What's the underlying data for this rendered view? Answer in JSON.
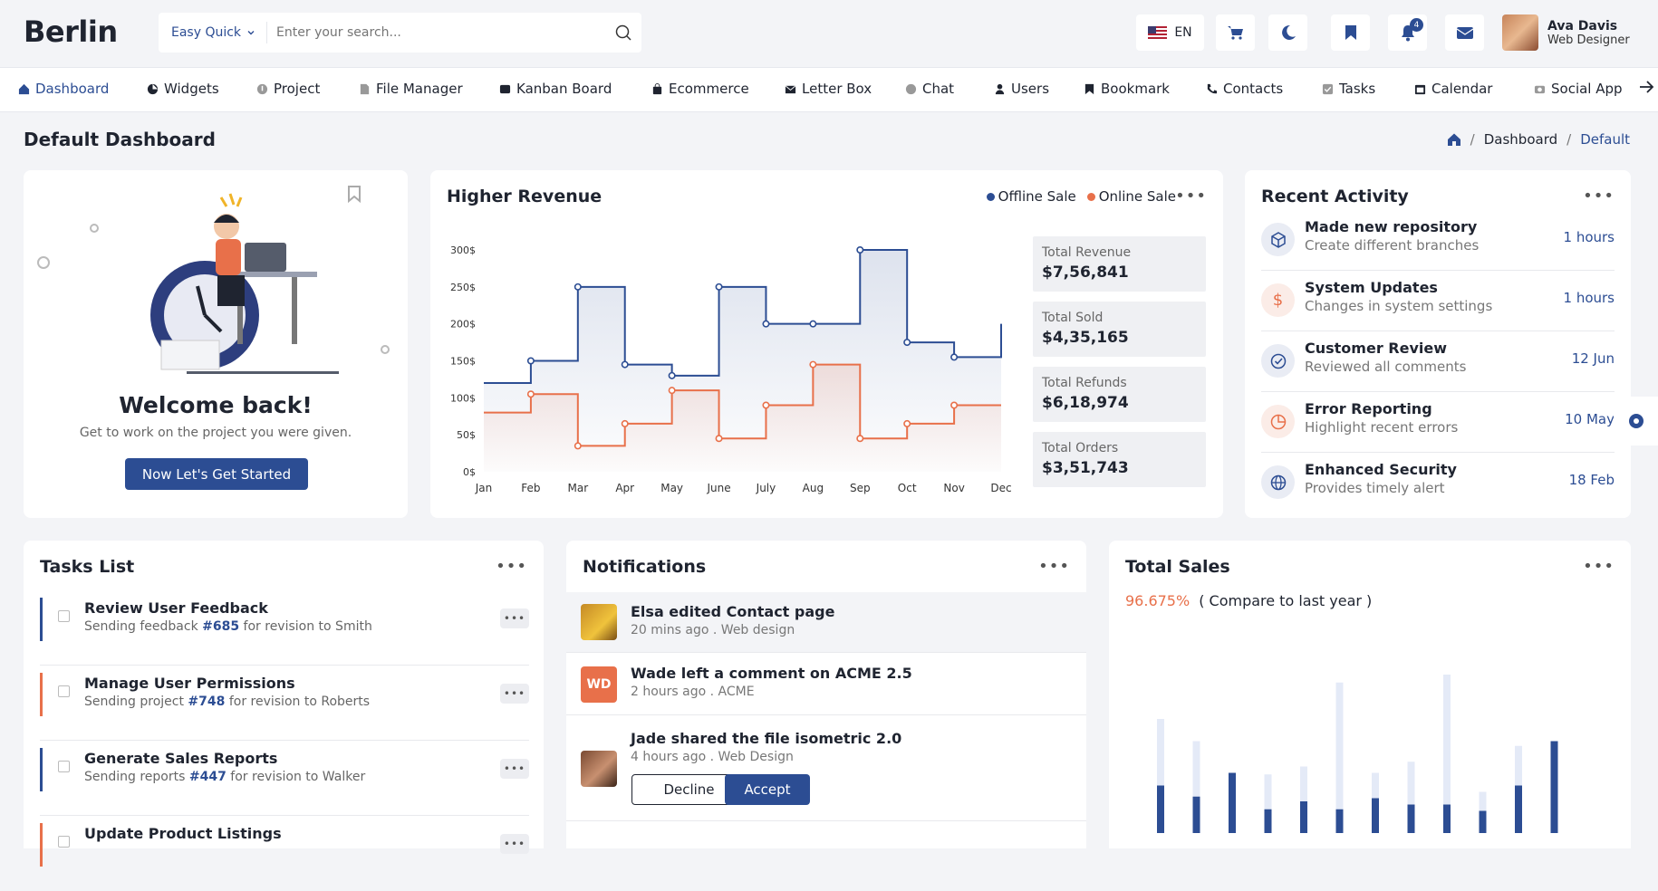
{
  "header": {
    "logo": "Berlin",
    "search_mode": "Easy Quick",
    "search_placeholder": "Enter your search...",
    "language": "EN",
    "notification_count": "4",
    "user_name": "Ava Davis",
    "user_role": "Web Designer"
  },
  "nav": {
    "items": [
      {
        "label": "Dashboard"
      },
      {
        "label": "Widgets"
      },
      {
        "label": "Project"
      },
      {
        "label": "File Manager"
      },
      {
        "label": "Kanban Board"
      },
      {
        "label": "Ecommerce"
      },
      {
        "label": "Letter Box"
      },
      {
        "label": "Chat"
      },
      {
        "label": "Users"
      },
      {
        "label": "Bookmark"
      },
      {
        "label": "Contacts"
      },
      {
        "label": "Tasks"
      },
      {
        "label": "Calendar"
      },
      {
        "label": "Social App"
      }
    ]
  },
  "page": {
    "title": "Default Dashboard",
    "breadcrumb": [
      "Dashboard",
      "Default"
    ]
  },
  "welcome": {
    "title": "Welcome back!",
    "subtitle": "Get to work on the project you were given.",
    "button": "Now Let's Get Started"
  },
  "revenue": {
    "title": "Higher Revenue",
    "legend": [
      "Offline Sale",
      "Online Sale"
    ],
    "stats": [
      {
        "label": "Total Revenue",
        "value": "$7,56,841"
      },
      {
        "label": "Total Sold",
        "value": "$4,35,165"
      },
      {
        "label": "Total Refunds",
        "value": "$6,18,974"
      },
      {
        "label": "Total Orders",
        "value": "$3,51,743"
      }
    ]
  },
  "chart_data": {
    "type": "line",
    "categories": [
      "Jan",
      "Feb",
      "Mar",
      "Apr",
      "May",
      "June",
      "July",
      "Aug",
      "Sep",
      "Oct",
      "Nov",
      "Dec"
    ],
    "y_ticks": [
      "0$",
      "50$",
      "100$",
      "150$",
      "200$",
      "250$",
      "300$"
    ],
    "ylim": [
      0,
      300
    ],
    "series": [
      {
        "name": "Offline Sale",
        "color": "#2c4d93",
        "values": [
          120,
          150,
          250,
          145,
          130,
          250,
          200,
          200,
          300,
          175,
          155,
          200
        ]
      },
      {
        "name": "Online Sale",
        "color": "#e8704a",
        "values": [
          80,
          105,
          35,
          65,
          110,
          45,
          90,
          145,
          45,
          65,
          90,
          90
        ]
      }
    ]
  },
  "activity": {
    "title": "Recent Activity",
    "items": [
      {
        "title": "Made new repository",
        "sub": "Create different branches",
        "time": "1 hours",
        "icon": "cube-icon"
      },
      {
        "title": "System Updates",
        "sub": "Changes in system settings",
        "time": "1 hours",
        "icon": "dollar-icon"
      },
      {
        "title": "Customer Review",
        "sub": "Reviewed all comments",
        "time": "12 Jun",
        "icon": "check-icon"
      },
      {
        "title": "Error Reporting",
        "sub": "Highlight recent errors",
        "time": "10 May",
        "icon": "pie-icon"
      },
      {
        "title": "Enhanced Security",
        "sub": "Provides timely alert",
        "time": "18 Feb",
        "icon": "globe-icon"
      }
    ]
  },
  "tasks": {
    "title": "Tasks List",
    "items": [
      {
        "title": "Review User Feedback",
        "pre": "Sending feedback ",
        "id": "#685",
        "post": " for revision to Smith",
        "color": "#2c4d93"
      },
      {
        "title": "Manage User Permissions",
        "pre": "Sending project ",
        "id": "#748",
        "post": " for revision to Roberts",
        "color": "#e8704a"
      },
      {
        "title": "Generate Sales Reports",
        "pre": "Sending reports ",
        "id": "#447",
        "post": " for revision to Walker",
        "color": "#2c4d93"
      },
      {
        "title": "Update Product Listings",
        "pre": "",
        "id": "",
        "post": "",
        "color": "#e8704a"
      }
    ]
  },
  "notifications": {
    "title": "Notifications",
    "items": [
      {
        "title": "Elsa edited Contact page",
        "sub": "20 mins ago . Web design"
      },
      {
        "title": "Wade left a comment on ACME 2.5",
        "sub": "2 hours ago . ACME",
        "initials": "WD"
      },
      {
        "title": "Jade shared the file isometric 2.0",
        "sub": "4 hours ago . Web Design"
      }
    ],
    "decline": "Decline",
    "accept": "Accept"
  },
  "sales": {
    "title": "Total Sales",
    "percent": "96.675%",
    "compare": "( Compare to last year )",
    "bars": [
      {
        "total": 0.72,
        "value": 0.3
      },
      {
        "total": 0.58,
        "value": 0.23
      },
      {
        "total": 0.38,
        "value": 0.38
      },
      {
        "total": 0.37,
        "value": 0.15
      },
      {
        "total": 0.42,
        "value": 0.2
      },
      {
        "total": 0.95,
        "value": 0.15
      },
      {
        "total": 0.38,
        "value": 0.22
      },
      {
        "total": 0.45,
        "value": 0.18
      },
      {
        "total": 1.0,
        "value": 0.18
      },
      {
        "total": 0.26,
        "value": 0.14
      },
      {
        "total": 0.55,
        "value": 0.3
      },
      {
        "total": 0.58,
        "value": 0.58
      }
    ]
  }
}
